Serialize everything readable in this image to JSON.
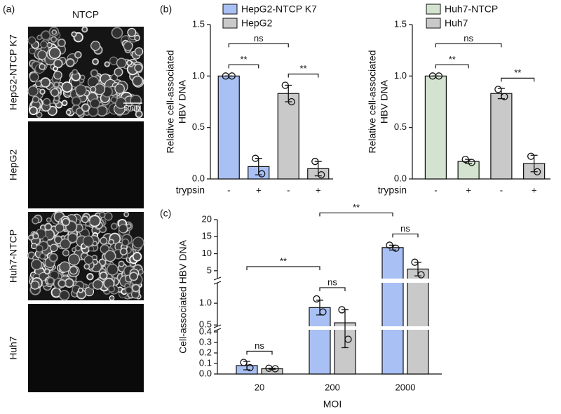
{
  "panel_a": {
    "label": "(a)",
    "title": "NTCP",
    "rows": [
      "HepG2-NTCP K7",
      "HepG2",
      "Huh7-NTCP",
      "Huh7"
    ],
    "scale_bar": "50uM"
  },
  "chart_data": [
    {
      "type": "bar",
      "panel_label": "(b)",
      "ylabel": [
        "Relative cell-associated",
        "HBV DNA"
      ],
      "xrow_label": "trypsin",
      "categories": [
        "-",
        "+",
        "-",
        "+"
      ],
      "series": [
        {
          "name": "HepG2-NTCP K7",
          "color": "#a9c0f4",
          "values": [
            1.0,
            0.12,
            null,
            null
          ],
          "errors": [
            0,
            0.08,
            null,
            null
          ],
          "points": [
            [
              1.0,
              1.0
            ],
            [
              0.2,
              0.05
            ],
            null,
            null
          ]
        },
        {
          "name": "HepG2",
          "color": "#c9c9c9",
          "values": [
            null,
            null,
            0.83,
            0.1
          ],
          "errors": [
            null,
            null,
            0.08,
            0.07
          ],
          "points": [
            null,
            null,
            [
              0.91,
              0.75
            ],
            [
              0.17,
              0.04
            ]
          ]
        }
      ],
      "ylim": [
        0,
        1.5
      ],
      "yticks": [
        {
          "value": 0,
          "label": "0.0"
        },
        0.5,
        {
          "value": 1,
          "label": "1.0"
        },
        1.5
      ],
      "annotations": [
        {
          "text": "**",
          "between": [
            [
              0,
              0
            ],
            [
              1,
              0
            ]
          ]
        },
        {
          "text": "**",
          "between": [
            [
              2,
              1
            ],
            [
              3,
              1
            ]
          ]
        },
        {
          "text": "ns",
          "between": [
            [
              0,
              0
            ],
            [
              2,
              1
            ]
          ]
        }
      ]
    },
    {
      "type": "bar",
      "ylabel": [
        "Relative cell-associated",
        "HBV DNA"
      ],
      "xrow_label": "trypsin",
      "categories": [
        "-",
        "+",
        "-",
        "+"
      ],
      "series": [
        {
          "name": "Huh7-NTCP",
          "color": "#d3e3cf",
          "values": [
            1.0,
            0.17,
            null,
            null
          ],
          "errors": [
            0,
            0.02,
            null,
            null
          ],
          "points": [
            [
              1.0,
              1.0
            ],
            [
              0.19,
              0.16
            ],
            null,
            null
          ]
        },
        {
          "name": "Huh7",
          "color": "#c9c9c9",
          "values": [
            null,
            null,
            0.83,
            0.15
          ],
          "errors": [
            null,
            null,
            0.05,
            0.08
          ],
          "points": [
            null,
            null,
            [
              0.87,
              0.8
            ],
            [
              0.22,
              0.07
            ]
          ]
        }
      ],
      "ylim": [
        0,
        1.5
      ],
      "yticks": [
        {
          "value": 0,
          "label": "0.0"
        },
        0.5,
        {
          "value": 1,
          "label": "1.0"
        },
        1.5
      ],
      "annotations": [
        {
          "text": "**",
          "between": [
            [
              0,
              0
            ],
            [
              1,
              0
            ]
          ]
        },
        {
          "text": "**",
          "between": [
            [
              2,
              1
            ],
            [
              3,
              1
            ]
          ]
        },
        {
          "text": "ns",
          "between": [
            [
              0,
              0
            ],
            [
              2,
              1
            ]
          ]
        }
      ]
    },
    {
      "type": "bar",
      "panel_label": "(c)",
      "ylabel": [
        "Cell-associated HBV DNA"
      ],
      "xlabel": "MOI",
      "categories": [
        "20",
        "200",
        "2000"
      ],
      "series": [
        {
          "color": "#a9c0f4",
          "values": [
            0.08,
            0.9,
            11.8
          ],
          "errors": [
            0.04,
            0.17,
            0.7
          ],
          "points": [
            [
              0.11,
              0.06
            ],
            [
              1.1,
              0.8
            ],
            [
              12.5,
              11.6
            ]
          ]
        },
        {
          "color": "#c9c9c9",
          "values": [
            0.05,
            0.55,
            5.5
          ],
          "errors": [
            0.005,
            0.3,
            2.0
          ],
          "points": [
            [
              0.055,
              0.05
            ],
            [
              0.85,
              0.33
            ],
            [
              7.5,
              3.8
            ]
          ]
        }
      ],
      "y_segments": [
        {
          "ylim": [
            0,
            0.42
          ],
          "yticks": [
            {
              "value": 0,
              "label": "0.0"
            },
            0.1,
            0.2,
            0.3,
            0.4
          ]
        },
        {
          "ylim": [
            0.47,
            1.47
          ],
          "yticks": [
            0.5,
            {
              "value": 1,
              "label": "1.0"
            }
          ]
        },
        {
          "ylim": [
            2.7,
            20
          ],
          "yticks": [
            5,
            10,
            15,
            20
          ]
        }
      ],
      "annotations": [
        {
          "text": "ns",
          "between": [
            [
              0,
              0
            ],
            [
              0,
              1
            ]
          ]
        },
        {
          "text": "ns",
          "between": [
            [
              1,
              0
            ],
            [
              1,
              1
            ]
          ]
        },
        {
          "text": "ns",
          "between": [
            [
              2,
              0
            ],
            [
              2,
              1
            ]
          ]
        },
        {
          "text": "**",
          "between": [
            [
              0,
              0
            ],
            [
              1,
              0
            ]
          ]
        },
        {
          "text": "**",
          "between": [
            [
              1,
              0
            ],
            [
              2,
              0
            ]
          ]
        }
      ]
    }
  ]
}
